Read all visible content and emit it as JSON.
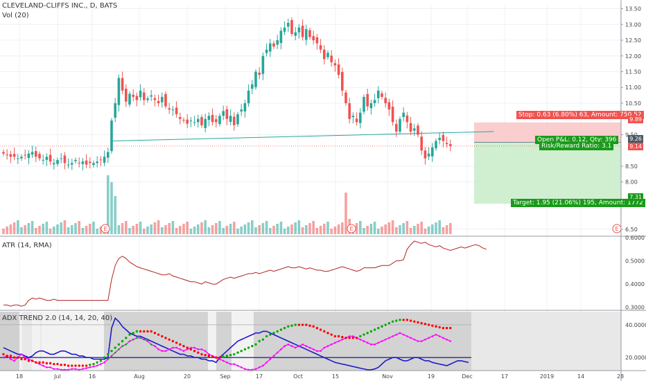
{
  "header": {
    "title": "CLEVELAND-CLIFFS INC., D, BATS",
    "vol_label": "Vol (20)",
    "atr_label": "ATR (14, RMA)",
    "adx_label": "ADX TREND 2.0 (14, 14, 20, 40)"
  },
  "position": {
    "stop_text": "Stop: 0.63 (6.80%) 63, Amount: 750.52",
    "pnl_text": "Open P&L: 0.12, Qty: 396",
    "rr_text": "Risk/Reward Ratio: 3.1",
    "target_text": "Target: 1.95 (21.06%) 195, Amount: 1772",
    "stop_price": 9.89,
    "entry_price": 9.26,
    "current_price": 9.14,
    "target_price": 7.31,
    "price_tags": [
      "9.89",
      "9.26",
      "9.14",
      "7.31"
    ]
  },
  "colors": {
    "up": "#26a69a",
    "down": "#ef5350",
    "stop_zone": "#f9c6c6",
    "target_zone": "#c8ecc8",
    "atr_line": "#b22222",
    "adx_red": "#ff0000",
    "adx_green": "#00aa00",
    "adx_blue": "#1a1acc",
    "adx_magenta": "#ff00ff",
    "trendline": "#26a69a"
  },
  "chart_data": [
    {
      "type": "candlestick",
      "title": "CLEVELAND-CLIFFS INC., D, BATS",
      "y_ticks": [
        "13.50",
        "13.00",
        "12.50",
        "12.00",
        "11.50",
        "11.00",
        "10.50",
        "9.50",
        "8.50",
        "8.00",
        "6.50"
      ],
      "ylim": [
        6.3,
        13.6
      ],
      "x_ticks": [
        "18",
        "Jul",
        "16",
        "Aug",
        "20",
        "Sep",
        "17",
        "Oct",
        "15",
        "Nov",
        "19",
        "Dec",
        "17",
        "2019",
        "14",
        "28"
      ],
      "earnings_markers": [
        "E",
        "E",
        "E"
      ],
      "close": [
        8.9,
        8.85,
        8.8,
        8.8,
        8.75,
        8.8,
        8.85,
        8.9,
        8.95,
        8.8,
        8.75,
        8.7,
        8.8,
        8.65,
        8.6,
        8.7,
        8.75,
        8.6,
        8.55,
        8.6,
        8.7,
        8.6,
        8.65,
        8.55,
        8.6,
        8.6,
        8.65,
        8.7,
        8.8,
        8.95,
        9.95,
        10.5,
        11.3,
        10.9,
        10.55,
        10.8,
        10.7,
        10.6,
        10.9,
        10.6,
        10.65,
        10.75,
        10.6,
        10.5,
        10.7,
        10.4,
        10.3,
        10.3,
        10.15,
        10.0,
        9.95,
        9.85,
        9.95,
        9.9,
        10.0,
        9.8,
        10.0,
        10.1,
        9.9,
        9.9,
        10.1,
        10.25,
        10.0,
        10.1,
        9.8,
        10.15,
        10.3,
        10.5,
        10.9,
        11.1,
        11.5,
        11.4,
        12.0,
        12.2,
        12.4,
        12.3,
        12.5,
        12.8,
        12.9,
        13.05,
        12.7,
        12.75,
        12.9,
        12.6,
        12.85,
        12.6,
        12.5,
        12.4,
        12.2,
        11.9,
        12.1,
        11.8,
        11.7,
        11.4,
        10.9,
        10.5,
        10.0,
        10.1,
        9.9,
        10.2,
        10.7,
        10.4,
        10.5,
        10.6,
        10.9,
        10.7,
        10.5,
        10.3,
        9.9,
        9.6,
        10.0,
        10.2,
        9.9,
        9.6,
        9.7,
        9.5,
        9.0,
        8.75,
        8.9,
        9.1,
        9.3,
        9.4,
        9.3,
        9.2,
        9.14
      ],
      "volume_shape": "daily volume bars, spike on earnings days",
      "trendline": [
        [
          30,
          9.3
        ],
        [
          136,
          9.6
        ]
      ]
    },
    {
      "type": "line",
      "title": "ATR (14, RMA)",
      "y_ticks": [
        "0.6000",
        "0.5000",
        "0.4000",
        "0.3000"
      ],
      "ylim": [
        0.29,
        0.6
      ],
      "values": [
        0.31,
        0.31,
        0.305,
        0.31,
        0.31,
        0.305,
        0.31,
        0.33,
        0.34,
        0.335,
        0.34,
        0.335,
        0.33,
        0.33,
        0.335,
        0.33,
        0.33,
        0.33,
        0.33,
        0.33,
        0.33,
        0.33,
        0.33,
        0.33,
        0.33,
        0.33,
        0.33,
        0.33,
        0.33,
        0.33,
        0.42,
        0.48,
        0.51,
        0.52,
        0.51,
        0.495,
        0.485,
        0.475,
        0.47,
        0.465,
        0.46,
        0.455,
        0.45,
        0.445,
        0.44,
        0.44,
        0.445,
        0.435,
        0.43,
        0.425,
        0.42,
        0.415,
        0.41,
        0.41,
        0.405,
        0.4,
        0.41,
        0.405,
        0.4,
        0.4,
        0.41,
        0.42,
        0.425,
        0.43,
        0.425,
        0.43,
        0.435,
        0.44,
        0.445,
        0.445,
        0.45,
        0.445,
        0.45,
        0.455,
        0.46,
        0.455,
        0.46,
        0.465,
        0.47,
        0.475,
        0.47,
        0.47,
        0.475,
        0.47,
        0.465,
        0.47,
        0.465,
        0.46,
        0.46,
        0.455,
        0.455,
        0.46,
        0.465,
        0.47,
        0.475,
        0.47,
        0.465,
        0.46,
        0.455,
        0.46,
        0.47,
        0.47,
        0.47,
        0.47,
        0.475,
        0.48,
        0.48,
        0.48,
        0.49,
        0.5,
        0.5,
        0.505,
        0.55,
        0.57,
        0.585,
        0.58,
        0.575,
        0.58,
        0.57,
        0.565,
        0.56,
        0.565,
        0.555,
        0.55,
        0.545,
        0.55,
        0.555,
        0.56,
        0.555,
        0.56,
        0.565,
        0.57,
        0.565,
        0.555,
        0.55
      ]
    },
    {
      "type": "line",
      "title": "ADX TREND 2.0 (14, 14, 20, 40)",
      "y_ticks": [
        "40.0000",
        "20.0000"
      ],
      "ylim": [
        12,
        48
      ],
      "reference_lines": [
        40,
        20
      ],
      "series": [
        {
          "color": "red",
          "values": [
            22,
            21,
            21,
            20,
            20,
            19,
            19,
            18,
            18,
            17,
            17,
            17,
            16.5,
            16.5,
            16,
            16,
            15.5,
            15.5,
            15,
            15,
            15,
            15,
            15,
            15,
            15.5,
            16,
            17,
            18,
            20,
            22,
            24,
            26,
            28,
            30,
            32,
            34,
            35,
            36,
            36,
            36,
            36,
            36,
            35,
            34,
            33,
            32,
            31,
            30,
            29,
            28,
            27,
            26,
            25,
            24,
            23,
            22,
            21.5,
            21,
            20.5,
            20,
            20,
            20.5,
            21,
            21.5,
            22,
            23,
            24,
            25,
            26,
            27,
            28,
            30,
            31,
            33,
            34,
            35,
            36,
            37,
            38,
            39,
            39.5,
            40,
            40,
            40,
            40,
            39.5,
            39,
            38,
            37,
            36,
            35,
            34,
            33,
            33,
            32.5,
            32,
            32,
            32,
            32,
            33,
            34,
            35,
            36,
            37,
            38,
            39,
            40,
            41,
            42,
            42.5,
            43,
            43,
            43,
            42.5,
            42,
            41.5,
            41,
            40.5,
            40,
            39.5,
            39,
            38.5,
            38,
            38,
            38
          ]
        },
        {
          "color": "blue",
          "values": [
            26,
            25,
            24,
            23,
            22,
            22,
            21,
            20,
            21,
            23,
            24,
            24,
            23,
            22,
            22,
            23,
            24,
            24,
            23,
            22,
            22,
            21,
            21,
            20,
            20,
            19,
            19,
            19,
            19,
            20,
            38,
            44,
            42,
            39,
            37,
            35,
            34,
            33,
            33,
            32,
            31,
            30,
            29,
            28,
            27,
            26,
            25,
            24,
            23,
            22,
            22,
            21,
            21,
            20,
            20,
            19,
            19,
            18,
            18,
            17,
            20,
            22,
            24,
            26,
            28,
            30,
            31,
            32,
            33,
            34,
            35,
            35,
            36,
            36,
            35,
            34,
            33,
            32,
            31,
            30,
            29,
            28,
            27,
            26,
            25,
            24,
            23,
            22,
            21,
            20,
            19,
            18,
            17,
            16.5,
            16,
            15.5,
            15,
            14.5,
            14,
            13.5,
            13,
            12.5,
            12.5,
            13,
            14,
            16,
            18,
            19,
            20,
            20,
            19,
            18,
            18,
            19,
            20,
            20,
            19,
            18,
            18,
            17,
            16.5,
            16,
            15.5,
            15,
            16,
            17,
            18,
            18,
            17.5,
            17
          ]
        },
        {
          "color": "green_magenta",
          "values": [
            20,
            21,
            19,
            18,
            20,
            22,
            20,
            19,
            18,
            17,
            16,
            15,
            14,
            14,
            13,
            13,
            12.5,
            12.5,
            12.5,
            13,
            13,
            12.5,
            13,
            13.5,
            14,
            14.5,
            15,
            16,
            17,
            19,
            21,
            23,
            25,
            27,
            28,
            30,
            31,
            32,
            32,
            31,
            30,
            28,
            27,
            25,
            24,
            24,
            25,
            26,
            26,
            25,
            24,
            25,
            26,
            26,
            25,
            25,
            24,
            22,
            21,
            20,
            19,
            18,
            17,
            16,
            16,
            15,
            14,
            13,
            12.5,
            12.5,
            13,
            14,
            15,
            17,
            19,
            21,
            23,
            25,
            27,
            28,
            27,
            26,
            27,
            28,
            27,
            26,
            25,
            24,
            24,
            26,
            27,
            28,
            29,
            30,
            31,
            32,
            33,
            33,
            32,
            31,
            30,
            29,
            28,
            28,
            29,
            30,
            31,
            32,
            33,
            34,
            35,
            34,
            33,
            32,
            31,
            30,
            30,
            31,
            32,
            33,
            34,
            33,
            32,
            31,
            30
          ]
        }
      ]
    }
  ]
}
